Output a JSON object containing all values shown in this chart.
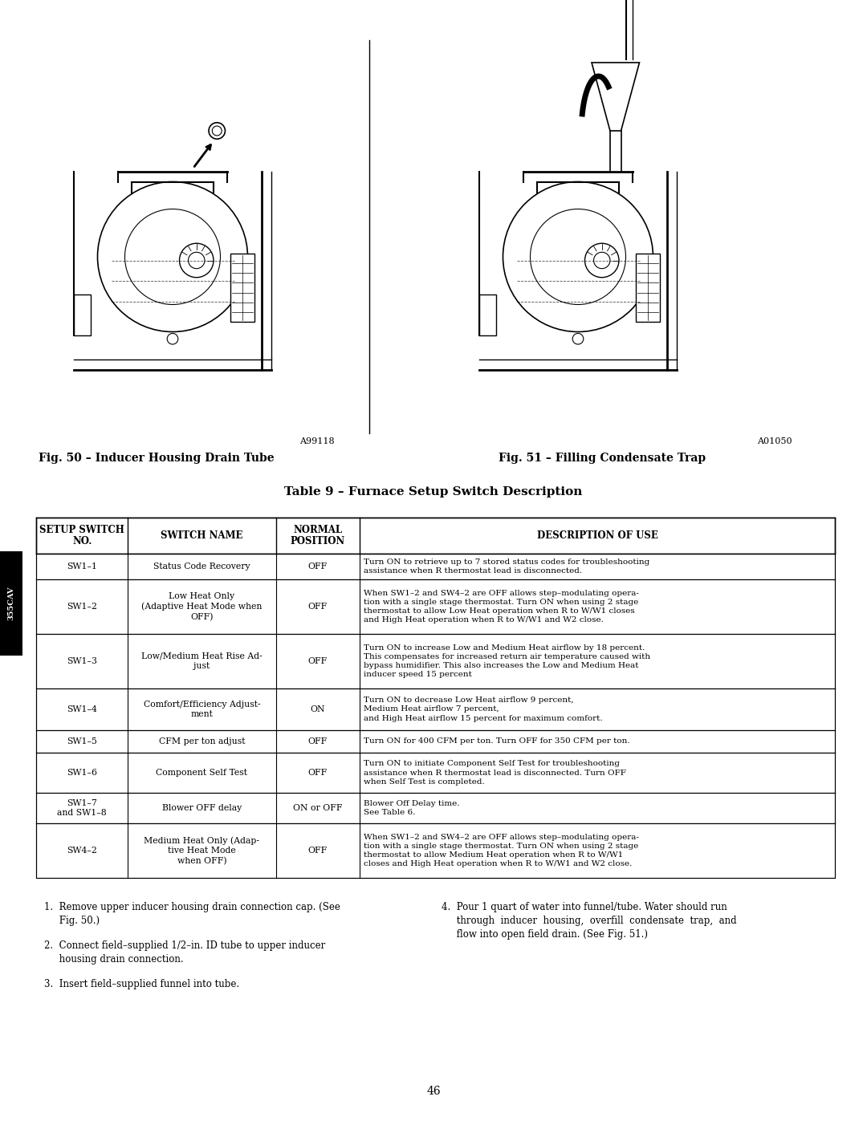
{
  "page_bg": "#ffffff",
  "sidebar_bg": "#000000",
  "sidebar_text": "355CAV",
  "fig50_caption": "Fig. 50 – Inducer Housing Drain Tube",
  "fig51_caption": "Fig. 51 – Filling Condensate Trap",
  "fig50_code": "A99118",
  "fig51_code": "A01050",
  "table_title": "Table 9 – Furnace Setup Switch Description",
  "table_headers": [
    "SETUP SWITCH\nNO.",
    "SWITCH NAME",
    "NORMAL\nPOSITION",
    "DESCRIPTION OF USE"
  ],
  "table_rows": [
    [
      "SW1–1",
      "Status Code Recovery",
      "OFF",
      "Turn ON to retrieve up to 7 stored status codes for troubleshooting\nassistance when R thermostat lead is disconnected."
    ],
    [
      "SW1–2",
      "Low Heat Only\n(Adaptive Heat Mode when\nOFF)",
      "OFF",
      "When SW1–2 and SW4–2 are OFF allows step–modulating opera-\ntion with a single stage thermostat. Turn ON when using 2 stage\nthermostat to allow Low Heat operation when R to W/W1 closes\nand High Heat operation when R to W/W1 and W2 close."
    ],
    [
      "SW1–3",
      "Low/Medium Heat Rise Ad-\njust",
      "OFF",
      "Turn ON to increase Low and Medium Heat airflow by 18 percent.\nThis compensates for increased return air temperature caused with\nbypass humidifier. This also increases the Low and Medium Heat\ninducer speed 15 percent"
    ],
    [
      "SW1–4",
      "Comfort/Efficiency Adjust-\nment",
      "ON",
      "Turn ON to decrease Low Heat airflow 9 percent,\nMedium Heat airflow 7 percent,\nand High Heat airflow 15 percent for maximum comfort."
    ],
    [
      "SW1–5",
      "CFM per ton adjust",
      "OFF",
      "Turn ON for 400 CFM per ton. Turn OFF for 350 CFM per ton."
    ],
    [
      "SW1–6",
      "Component Self Test",
      "OFF",
      "Turn ON to initiate Component Self Test for troubleshooting\nassistance when R thermostat lead is disconnected. Turn OFF\nwhen Self Test is completed."
    ],
    [
      "SW1–7\nand SW1–8",
      "Blower OFF delay",
      "ON or OFF",
      "Blower Off Delay time.\nSee Table 6."
    ],
    [
      "SW4–2",
      "Medium Heat Only (Adap-\ntive Heat Mode\nwhen OFF)",
      "OFF",
      "When SW1–2 and SW4–2 are OFF allows step–modulating opera-\ntion with a single stage thermostat. Turn ON when using 2 stage\nthermostat to allow Medium Heat operation when R to W/W1\ncloses and High Heat operation when R to W/W1 and W2 close."
    ]
  ],
  "instructions_left": [
    "1.  Remove upper inducer housing drain connection cap. (See\n     Fig. 50.)",
    "2.  Connect field–supplied 1/2–in. ID tube to upper inducer\n     housing drain connection.",
    "3.  Insert field–supplied funnel into tube."
  ],
  "instructions_right": [
    "4.  Pour 1 quart of water into funnel/tube. Water should run\n     through  inducer  housing,  overfill  condensate  trap,  and\n     flow into open field drain. (See Fig. 51.)"
  ],
  "page_number": "46"
}
